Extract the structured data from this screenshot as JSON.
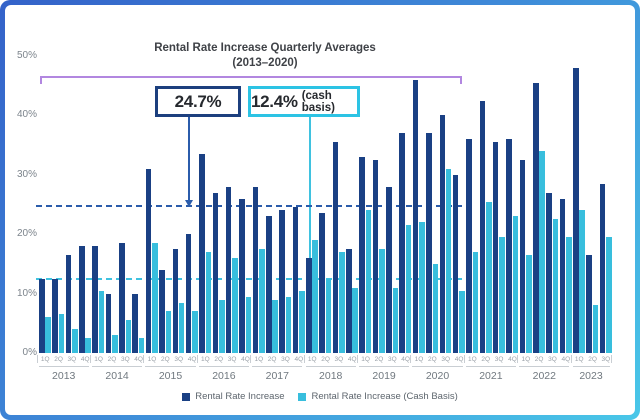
{
  "title": {
    "line1": "Rental Rate Increase Quarterly Averages",
    "line2": "(2013–2020)"
  },
  "annotations": {
    "dark_avg": {
      "value": "24.7%",
      "suffix": ""
    },
    "cash_avg": {
      "value": "12.4%",
      "suffix": "(cash basis)"
    }
  },
  "y_axis": {
    "labels": [
      "50%",
      "40%",
      "30%",
      "20%",
      "10%",
      "0%"
    ]
  },
  "legend": [
    {
      "label": "Rental Rate Increase",
      "color": "#1a4084"
    },
    {
      "label": "Rental Rate Increase (Cash Basis)",
      "color": "#38bedd"
    }
  ],
  "chart_data": {
    "type": "bar",
    "title": "Rental Rate Increase Quarterly Averages (2013–2020)",
    "ylim": [
      0,
      50
    ],
    "grid": false,
    "legend_position": "bottom",
    "colors": {
      "dark": "#1a4084",
      "cash": "#38bedd",
      "dark_dash": "#2b5cab",
      "cash_dash": "#3fc2e0"
    },
    "years": [
      {
        "year": "2013",
        "quarters": [
          "1Q",
          "2Q",
          "3Q",
          "4Q"
        ]
      },
      {
        "year": "2014",
        "quarters": [
          "1Q",
          "2Q",
          "3Q",
          "4Q"
        ]
      },
      {
        "year": "2015",
        "quarters": [
          "1Q",
          "2Q",
          "3Q",
          "4Q"
        ]
      },
      {
        "year": "2016",
        "quarters": [
          "1Q",
          "2Q",
          "3Q",
          "4Q"
        ]
      },
      {
        "year": "2017",
        "quarters": [
          "1Q",
          "2Q",
          "3Q",
          "4Q"
        ]
      },
      {
        "year": "2018",
        "quarters": [
          "1Q",
          "2Q",
          "3Q",
          "4Q"
        ]
      },
      {
        "year": "2019",
        "quarters": [
          "1Q",
          "2Q",
          "3Q",
          "4Q"
        ]
      },
      {
        "year": "2020",
        "quarters": [
          "1Q",
          "2Q",
          "3Q",
          "4Q"
        ]
      },
      {
        "year": "2021",
        "quarters": [
          "1Q",
          "2Q",
          "3Q",
          "4Q"
        ]
      },
      {
        "year": "2022",
        "quarters": [
          "1Q",
          "2Q",
          "3Q",
          "4Q"
        ]
      },
      {
        "year": "2023",
        "quarters": [
          "1Q",
          "2Q",
          "3Q"
        ]
      }
    ],
    "series": [
      {
        "name": "Rental Rate Increase",
        "values": [
          12.5,
          12.5,
          16.5,
          18,
          18,
          10,
          18.5,
          10,
          31,
          14,
          17.5,
          20,
          33.5,
          27,
          28,
          26,
          28,
          23,
          24,
          24.5,
          16,
          23.5,
          35.5,
          17.5,
          33,
          32.5,
          28,
          37,
          46,
          37,
          40,
          30,
          36,
          42.5,
          35.5,
          36,
          32.5,
          45.5,
          27,
          26,
          48,
          16.5,
          28.5
        ]
      },
      {
        "name": "Rental Rate Increase (Cash Basis)",
        "values": [
          6,
          6.5,
          4,
          2.5,
          10.5,
          3,
          5.5,
          2.5,
          18.5,
          7,
          8.5,
          7,
          17,
          9,
          16,
          9.5,
          17.5,
          9,
          9.5,
          10.5,
          19,
          12.5,
          17,
          11,
          24,
          17.5,
          11,
          21.5,
          22,
          15,
          31,
          10.5,
          17,
          25.5,
          19.5,
          23,
          16.5,
          34,
          22.5,
          19.5,
          24,
          8,
          19.5
        ]
      }
    ],
    "reference_lines": [
      {
        "label": "24.7%",
        "value": 24.7,
        "series": "Rental Rate Increase",
        "style": "dashed",
        "color": "#2b5cab"
      },
      {
        "label": "12.4%",
        "value": 12.4,
        "series": "Rental Rate Increase (Cash Basis)",
        "style": "dashed",
        "color": "#3fc2e0"
      }
    ]
  }
}
